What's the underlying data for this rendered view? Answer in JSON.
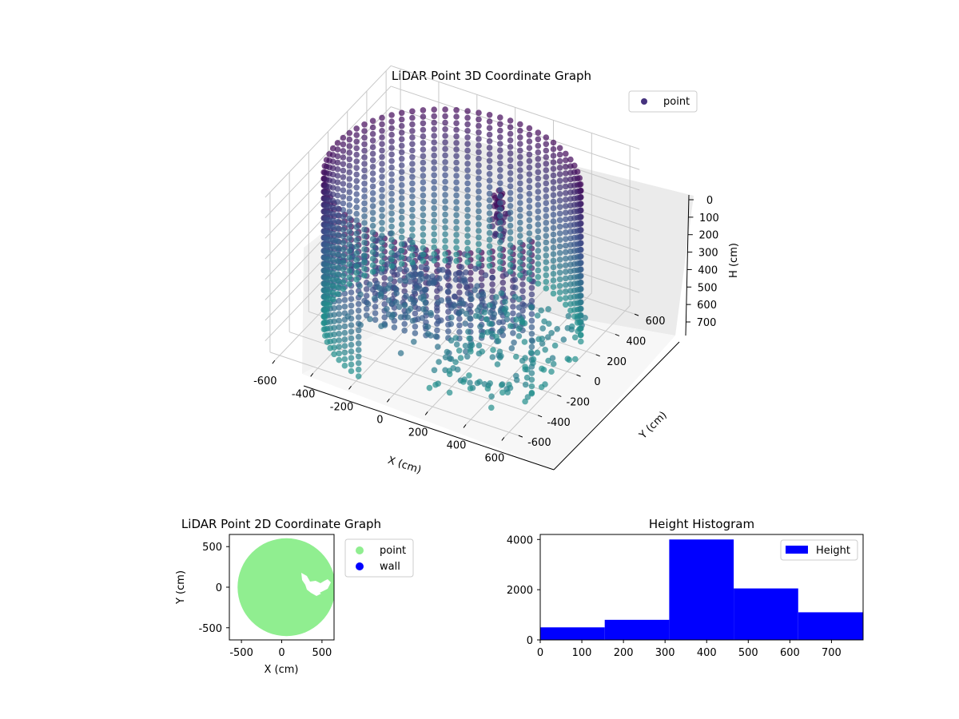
{
  "chart_data": [
    {
      "type": "scatter",
      "title": "LiDAR Point 3D Coordinate Graph",
      "xlabel": "X (cm)",
      "ylabel": "Y (cm)",
      "zlabel": "H (cm)",
      "xlim": [
        -650,
        650
      ],
      "ylim": [
        -650,
        650
      ],
      "zlim": [
        780,
        0
      ],
      "x_ticks": [
        -600,
        -400,
        -200,
        0,
        200,
        400,
        600
      ],
      "y_ticks": [
        -600,
        -400,
        -200,
        0,
        200,
        400,
        600
      ],
      "z_ticks": [
        0,
        100,
        200,
        300,
        400,
        500,
        600,
        700
      ],
      "legend": {
        "label": "point",
        "position": "top-right"
      },
      "colormap": {
        "low": "#440154",
        "mid": "#3b528b",
        "high": "#21908c"
      },
      "grid": true,
      "cylinder": {
        "radius": 600,
        "open_sector_deg": [
          -35,
          25
        ]
      },
      "figure": {
        "x": 250,
        "y": 0,
        "h_range": [
          0,
          240
        ]
      }
    },
    {
      "type": "scatter",
      "title": "LiDAR Point 2D Coordinate Graph",
      "xlabel": "X (cm)",
      "ylabel": "Y (cm)",
      "xlim": [
        -650,
        650
      ],
      "ylim": [
        -650,
        650
      ],
      "x_ticks": [
        -500,
        0,
        500
      ],
      "y_ticks": [
        -500,
        0,
        500
      ],
      "series": [
        {
          "name": "point",
          "color": "#90ee90",
          "radius": 620
        },
        {
          "name": "wall",
          "color": "#0000ff"
        }
      ],
      "legend": {
        "position": "outside-right"
      }
    },
    {
      "type": "bar",
      "title": "Height Histogram",
      "xlabel": "",
      "ylabel": "",
      "xlim": [
        0,
        776
      ],
      "ylim": [
        0,
        4200
      ],
      "x_ticks": [
        0,
        100,
        200,
        300,
        400,
        500,
        600,
        700
      ],
      "y_ticks": [
        0,
        2000,
        4000
      ],
      "bins": [
        {
          "start": 0,
          "end": 155,
          "count": 500
        },
        {
          "start": 155,
          "end": 310,
          "count": 800
        },
        {
          "start": 310,
          "end": 465,
          "count": 4000
        },
        {
          "start": 465,
          "end": 620,
          "count": 2050
        },
        {
          "start": 620,
          "end": 776,
          "count": 1100
        }
      ],
      "color": "#0000ff",
      "legend": {
        "label": "Height",
        "position": "top-right"
      }
    }
  ]
}
